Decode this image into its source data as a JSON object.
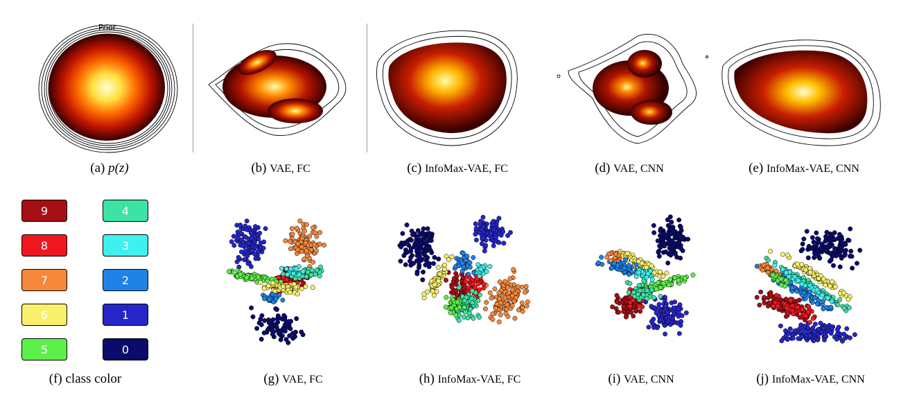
{
  "top_row": {
    "prior_label": "Prior",
    "captions": [
      {
        "id": "a",
        "prefix": "(a)",
        "text": "p(z)"
      },
      {
        "id": "b",
        "prefix": "(b)",
        "text": "VAE, FC"
      },
      {
        "id": "c",
        "prefix": "(c)",
        "text": "InfoMax-VAE, FC"
      },
      {
        "id": "d",
        "prefix": "(d)",
        "text": "VAE, CNN"
      },
      {
        "id": "e",
        "prefix": "(e)",
        "text": "InfoMax-VAE, CNN"
      }
    ]
  },
  "bottom_row": {
    "captions": [
      {
        "id": "f",
        "prefix": "(f)",
        "text": "class color"
      },
      {
        "id": "g",
        "prefix": "(g)",
        "text": "VAE, FC"
      },
      {
        "id": "h",
        "prefix": "(h)",
        "text": "InfoMax-VAE, FC"
      },
      {
        "id": "i",
        "prefix": "(i)",
        "text": "VAE, CNN"
      },
      {
        "id": "j",
        "prefix": "(j)",
        "text": "InfoMax-VAE, CNN"
      }
    ]
  },
  "legend": {
    "items": [
      {
        "label": "9",
        "color": "#a50f15",
        "text_color": "#ffffff"
      },
      {
        "label": "4",
        "color": "#3be3a4",
        "text_color": "#ffffff"
      },
      {
        "label": "8",
        "color": "#f01820",
        "text_color": "#ffffff"
      },
      {
        "label": "3",
        "color": "#3ef0ee",
        "text_color": "#ffffff"
      },
      {
        "label": "7",
        "color": "#f5883a",
        "text_color": "#ffffff"
      },
      {
        "label": "2",
        "color": "#1e82e6",
        "text_color": "#ffffff"
      },
      {
        "label": "6",
        "color": "#f8f06a",
        "text_color": "#ffffff"
      },
      {
        "label": "1",
        "color": "#2626c8",
        "text_color": "#ffffff"
      },
      {
        "label": "5",
        "color": "#5ef04a",
        "text_color": "#ffffff"
      },
      {
        "label": "0",
        "color": "#0b0b6b",
        "text_color": "#ffffff"
      }
    ]
  },
  "colors": {
    "density_outer": "#3a0000",
    "density_mid": "#c41e00",
    "density_hot": "#ff8a00",
    "density_core": "#ffffd0"
  }
}
